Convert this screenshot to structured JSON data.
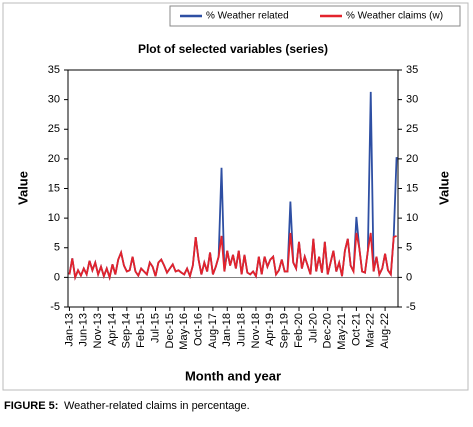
{
  "chart_data": {
    "type": "line",
    "title": "Plot of selected variables (series)",
    "x_label": "Month and year",
    "y_label": "Value",
    "y2_label": "Value",
    "caption_label": "FIGURE 5:",
    "caption": "Weather-related claims in percentage.",
    "legend": "top-right",
    "categories": [
      "Jan-13",
      null,
      null,
      null,
      null,
      "Jun-13",
      null,
      null,
      null,
      null,
      "Nov-13",
      null,
      null,
      null,
      null,
      "Apr-14",
      null,
      null,
      null,
      null,
      "Sep-14",
      null,
      null,
      null,
      null,
      "Feb-15",
      null,
      null,
      null,
      null,
      "Jul-15",
      null,
      null,
      null,
      null,
      "Dec-15",
      null,
      null,
      null,
      null,
      "May-16",
      null,
      null,
      null,
      null,
      "Oct-16",
      null,
      null,
      null,
      null,
      "Aug-17",
      null,
      null,
      null,
      null,
      "Jan-18",
      null,
      null,
      null,
      null,
      "Jun-18",
      null,
      null,
      null,
      null,
      "Nov-18",
      null,
      null,
      null,
      null,
      "Apr-19",
      null,
      null,
      null,
      null,
      "Sep-19",
      null,
      null,
      null,
      null,
      "Feb-20",
      null,
      null,
      null,
      null,
      "Jul-20",
      null,
      null,
      null,
      null,
      "Dec-20",
      null,
      null,
      null,
      null,
      "May-21",
      null,
      null,
      null,
      null,
      "Oct-21",
      null,
      null,
      null,
      null,
      "Mar-22",
      null,
      null,
      null,
      null,
      "Aug-22",
      null,
      null,
      null,
      null
    ],
    "series": [
      {
        "name": "% Weather related",
        "color": "#2e4fa3",
        "values": [
          0.5,
          3.2,
          0,
          1.2,
          0.3,
          1.5,
          0.5,
          2.8,
          1.2,
          2.5,
          0.5,
          1.8,
          0.2,
          1.5,
          0,
          2.2,
          0.5,
          3,
          4.2,
          2,
          1,
          1.2,
          3.5,
          1,
          0.3,
          1.5,
          1,
          0.5,
          2.5,
          1.8,
          0.2,
          2.5,
          3,
          2,
          0.8,
          1.5,
          2.2,
          1,
          1.2,
          0.8,
          0.5,
          1.5,
          0.2,
          2,
          6.8,
          3,
          0.5,
          2.5,
          1,
          4.2,
          0.5,
          1.8,
          3.5,
          18.5,
          1,
          4.5,
          2,
          3.8,
          1.5,
          4.5,
          0.5,
          3.8,
          0.8,
          0.5,
          1,
          0.2,
          3.5,
          0.5,
          3.5,
          1.8,
          3,
          3.5,
          0.5,
          1.2,
          3,
          1,
          1,
          12.8,
          2.5,
          1.5,
          6,
          1.5,
          3.5,
          2,
          0.5,
          6.5,
          1,
          3.5,
          0.8,
          6,
          0.5,
          2.5,
          4.5,
          1,
          2.5,
          0.2,
          4.5,
          6.5,
          2,
          1,
          10.2,
          5,
          1,
          0.8,
          4.5,
          31.3,
          1,
          3.5,
          0.5,
          1.5,
          4,
          1.2,
          0.5,
          6.8,
          20.3
        ]
      },
      {
        "name": "% Weather claims (w)",
        "color": "#e3232c",
        "values": [
          0.5,
          3.2,
          0,
          1.2,
          0.3,
          1.5,
          0.5,
          2.8,
          1.2,
          2.5,
          0.5,
          1.8,
          0.2,
          1.5,
          0,
          2.2,
          0.5,
          3,
          4.2,
          2,
          1,
          1.2,
          3.5,
          1,
          0.3,
          1.5,
          1,
          0.5,
          2.5,
          1.8,
          0.2,
          2.5,
          3,
          2,
          0.8,
          1.5,
          2.2,
          1,
          1.2,
          0.8,
          0.5,
          1.5,
          0.2,
          2,
          6.8,
          3,
          0.5,
          2.5,
          1,
          4.2,
          0.5,
          1.8,
          3.5,
          7,
          1,
          4.5,
          2,
          3.8,
          1.5,
          4.5,
          0.5,
          3.8,
          0.8,
          0.5,
          1,
          0.2,
          3.5,
          0.5,
          3.5,
          1.8,
          3,
          3.5,
          0.5,
          1.2,
          3,
          1,
          1,
          7.5,
          2.5,
          1.5,
          6,
          1.5,
          3.5,
          2,
          0.5,
          6.5,
          1,
          3.5,
          0.8,
          6,
          0.5,
          2.5,
          4.5,
          1,
          2.5,
          0.2,
          4.5,
          6.5,
          2,
          1,
          7.5,
          5,
          1,
          0.8,
          4.5,
          7.5,
          1,
          3.5,
          0.5,
          1.5,
          4,
          1.2,
          0.5,
          6.8,
          7
        ]
      }
    ],
    "ylim": [
      -5,
      35
    ],
    "yticks": [
      -5,
      0,
      5,
      10,
      15,
      20,
      25,
      30,
      35
    ],
    "y2lim": [
      -5,
      35
    ],
    "y2ticks": [
      -5,
      0,
      5,
      10,
      15,
      20,
      25,
      30,
      35
    ]
  }
}
